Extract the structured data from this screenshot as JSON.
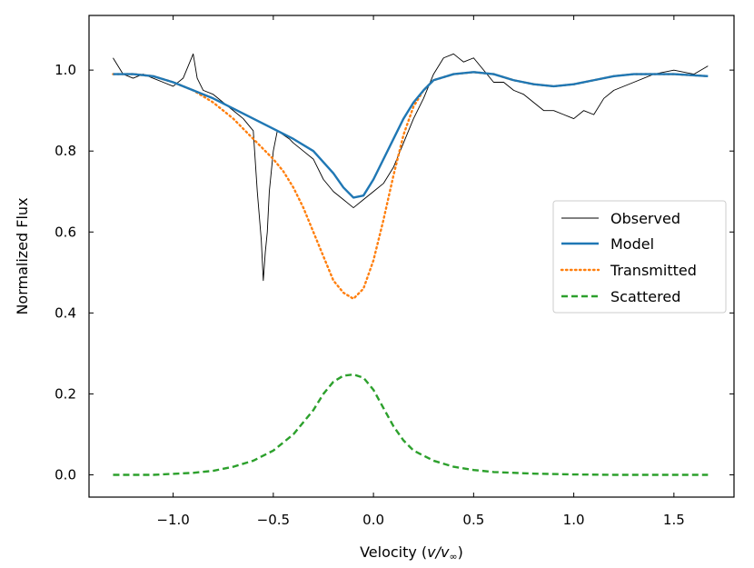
{
  "chart_data": {
    "type": "line",
    "title": "",
    "xlabel_prefix": "Velocity (",
    "xlabel_var": "v/v",
    "xlabel_sub": "∞",
    "xlabel_suffix": ")",
    "ylabel": "Normalized Flux",
    "xlim": [
      -1.42,
      1.8
    ],
    "ylim": [
      -0.055,
      1.135
    ],
    "xticks": [
      -1.0,
      -0.5,
      0.0,
      0.5,
      1.0,
      1.5
    ],
    "xtick_labels": [
      "−1.0",
      "−0.5",
      "0.0",
      "0.5",
      "1.0",
      "1.5"
    ],
    "yticks": [
      0.0,
      0.2,
      0.4,
      0.6,
      0.8,
      1.0
    ],
    "ytick_labels": [
      "0.0",
      "0.2",
      "0.4",
      "0.6",
      "0.8",
      "1.0"
    ],
    "legend_position": "center-right",
    "series": [
      {
        "name": "Observed",
        "color": "#000000",
        "style": "solid-thin",
        "x": [
          -1.3,
          -1.25,
          -1.2,
          -1.15,
          -1.1,
          -1.05,
          -1.0,
          -0.95,
          -0.9,
          -0.88,
          -0.85,
          -0.8,
          -0.75,
          -0.7,
          -0.65,
          -0.6,
          -0.58,
          -0.56,
          -0.55,
          -0.54,
          -0.53,
          -0.52,
          -0.5,
          -0.48,
          -0.45,
          -0.42,
          -0.4,
          -0.35,
          -0.3,
          -0.25,
          -0.2,
          -0.15,
          -0.1,
          -0.05,
          0.0,
          0.05,
          0.1,
          0.15,
          0.2,
          0.25,
          0.3,
          0.35,
          0.4,
          0.45,
          0.5,
          0.55,
          0.6,
          0.65,
          0.7,
          0.75,
          0.8,
          0.85,
          0.9,
          0.95,
          1.0,
          1.05,
          1.1,
          1.15,
          1.2,
          1.3,
          1.4,
          1.5,
          1.6,
          1.67
        ],
        "y": [
          1.03,
          0.99,
          0.98,
          0.99,
          0.98,
          0.97,
          0.96,
          0.98,
          1.04,
          0.98,
          0.95,
          0.94,
          0.92,
          0.9,
          0.88,
          0.85,
          0.7,
          0.58,
          0.48,
          0.55,
          0.6,
          0.7,
          0.8,
          0.85,
          0.84,
          0.83,
          0.82,
          0.8,
          0.78,
          0.73,
          0.7,
          0.68,
          0.66,
          0.68,
          0.7,
          0.72,
          0.76,
          0.82,
          0.88,
          0.93,
          0.99,
          1.03,
          1.04,
          1.02,
          1.03,
          1.0,
          0.97,
          0.97,
          0.95,
          0.94,
          0.92,
          0.9,
          0.9,
          0.89,
          0.88,
          0.9,
          0.89,
          0.93,
          0.95,
          0.97,
          0.99,
          1.0,
          0.99,
          1.01
        ]
      },
      {
        "name": "Model",
        "color": "#1f77b4",
        "style": "solid",
        "x": [
          -1.3,
          -1.2,
          -1.1,
          -1.0,
          -0.9,
          -0.8,
          -0.7,
          -0.6,
          -0.5,
          -0.4,
          -0.3,
          -0.2,
          -0.15,
          -0.1,
          -0.05,
          0.0,
          0.05,
          0.1,
          0.15,
          0.2,
          0.25,
          0.3,
          0.4,
          0.5,
          0.6,
          0.7,
          0.8,
          0.9,
          1.0,
          1.1,
          1.2,
          1.3,
          1.4,
          1.5,
          1.67
        ],
        "y": [
          0.99,
          0.99,
          0.985,
          0.97,
          0.95,
          0.93,
          0.905,
          0.88,
          0.855,
          0.83,
          0.8,
          0.745,
          0.71,
          0.685,
          0.69,
          0.73,
          0.78,
          0.83,
          0.88,
          0.92,
          0.95,
          0.975,
          0.99,
          0.995,
          0.99,
          0.975,
          0.965,
          0.96,
          0.965,
          0.975,
          0.985,
          0.99,
          0.99,
          0.99,
          0.985
        ]
      },
      {
        "name": "Transmitted",
        "color": "#ff7f0e",
        "style": "dotted",
        "x": [
          -1.3,
          -1.2,
          -1.1,
          -1.0,
          -0.9,
          -0.8,
          -0.7,
          -0.6,
          -0.5,
          -0.45,
          -0.4,
          -0.35,
          -0.3,
          -0.25,
          -0.2,
          -0.15,
          -0.1,
          -0.05,
          0.0,
          0.05,
          0.1,
          0.15,
          0.2,
          0.25,
          0.3,
          0.4,
          0.5,
          0.6,
          0.7,
          0.8,
          0.9,
          1.0,
          1.1,
          1.2,
          1.3,
          1.4,
          1.5,
          1.67
        ],
        "y": [
          0.99,
          0.99,
          0.985,
          0.97,
          0.95,
          0.92,
          0.88,
          0.83,
          0.78,
          0.75,
          0.71,
          0.66,
          0.6,
          0.54,
          0.48,
          0.45,
          0.435,
          0.46,
          0.53,
          0.63,
          0.74,
          0.84,
          0.91,
          0.95,
          0.975,
          0.99,
          0.995,
          0.99,
          0.975,
          0.965,
          0.96,
          0.965,
          0.975,
          0.985,
          0.99,
          0.99,
          0.99,
          0.985
        ]
      },
      {
        "name": "Scattered",
        "color": "#2ca02c",
        "style": "dashed",
        "x": [
          -1.3,
          -1.1,
          -0.9,
          -0.8,
          -0.7,
          -0.6,
          -0.5,
          -0.45,
          -0.4,
          -0.35,
          -0.3,
          -0.25,
          -0.2,
          -0.15,
          -0.1,
          -0.05,
          0.0,
          0.05,
          0.1,
          0.15,
          0.2,
          0.3,
          0.4,
          0.5,
          0.6,
          0.8,
          1.0,
          1.2,
          1.4,
          1.67
        ],
        "y": [
          0.0,
          0.0,
          0.005,
          0.01,
          0.02,
          0.035,
          0.06,
          0.08,
          0.1,
          0.13,
          0.16,
          0.2,
          0.23,
          0.245,
          0.248,
          0.24,
          0.21,
          0.165,
          0.12,
          0.085,
          0.06,
          0.035,
          0.02,
          0.012,
          0.007,
          0.003,
          0.001,
          0.0,
          0.0,
          0.0
        ]
      }
    ]
  }
}
